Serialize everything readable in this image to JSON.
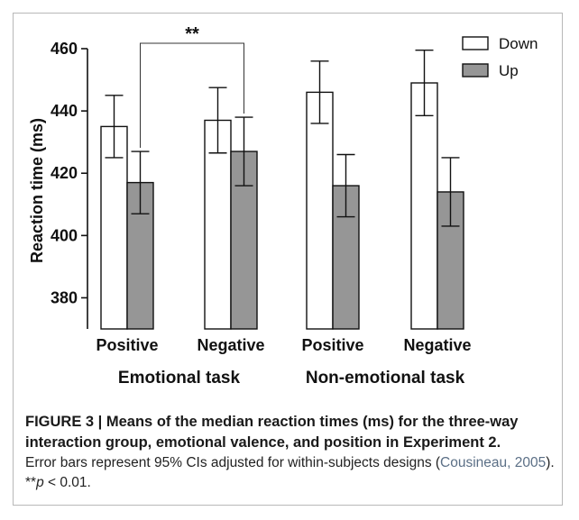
{
  "chart_data": {
    "type": "bar",
    "ylabel": "Reaction time (ms)",
    "ylim": [
      370,
      460
    ],
    "yticks": [
      380,
      400,
      420,
      440,
      460
    ],
    "categories": [
      "Positive",
      "Negative",
      "Positive",
      "Negative"
    ],
    "groups": [
      {
        "label": "Emotional task",
        "categories": [
          0,
          1
        ]
      },
      {
        "label": "Non-emotional task",
        "categories": [
          2,
          3
        ]
      }
    ],
    "series": [
      {
        "name": "Down",
        "color": "#ffffff",
        "values": [
          435,
          437,
          446,
          449
        ],
        "error": [
          10,
          10.5,
          10,
          10.5
        ]
      },
      {
        "name": "Up",
        "color": "#969696",
        "values": [
          417,
          427,
          416,
          414
        ],
        "error": [
          10,
          11,
          10,
          11
        ]
      }
    ],
    "legend": {
      "position": "top-right"
    },
    "annotations": [
      {
        "text": "**",
        "between": [
          "Up:0",
          "Up:1"
        ]
      }
    ],
    "grid": false
  },
  "caption": {
    "title": "FIGURE 3 | Means of the median reaction times (ms) for the three-way interaction group, emotional valence, and position in Experiment 2.",
    "body_before": "Error bars represent 95% CIs adjusted for within-subjects designs (",
    "citation": "Cousineau, 2005",
    "body_after": "). **",
    "p_symbol": "p",
    "p_rest": " < 0.01."
  }
}
